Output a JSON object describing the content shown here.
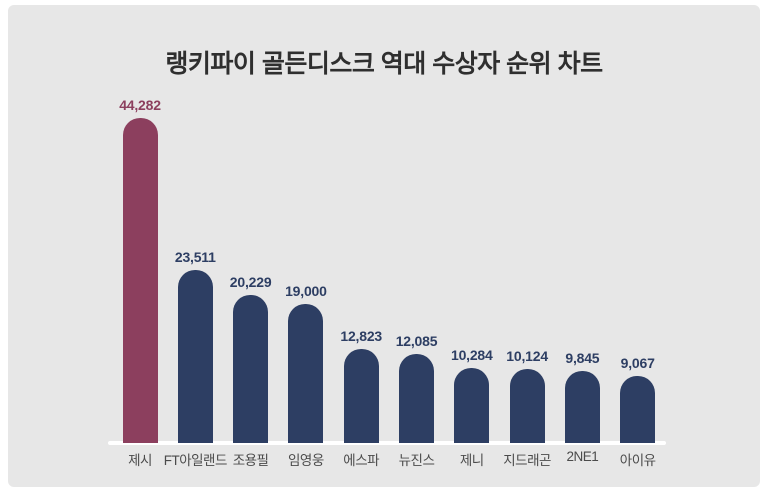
{
  "page": {
    "title": "랭키파이 골든디스크 역대 수상자 순위 차트"
  },
  "chart_data": {
    "type": "bar",
    "title": "랭키파이 골든디스크 역대 수상자 순위 차트",
    "categories": [
      "제시",
      "FT아일랜드",
      "조용필",
      "임영웅",
      "에스파",
      "뉴진스",
      "제니",
      "지드래곤",
      "2NE1",
      "아이유"
    ],
    "values": [
      44282,
      23511,
      20229,
      19000,
      12823,
      12085,
      10284,
      10124,
      9845,
      9067
    ],
    "value_labels": [
      "44,282",
      "23,511",
      "20,229",
      "19,000",
      "12,823",
      "12,085",
      "10,284",
      "10,124",
      "9,845",
      "9,067"
    ],
    "bar_colors": [
      "#8c3f5e",
      "#2d3e63",
      "#2d3e63",
      "#2d3e63",
      "#2d3e63",
      "#2d3e63",
      "#2d3e63",
      "#2d3e63",
      "#2d3e63",
      "#2d3e63"
    ],
    "highlight_color": "#8c3f5e",
    "default_color": "#2d3e63",
    "background_color": "#e7e7e7",
    "baseline_color": "#ffffff",
    "xlabel": "",
    "ylabel": "",
    "ylim": [
      0,
      45000
    ],
    "grid": false,
    "legend": null,
    "orientation": "vertical"
  }
}
